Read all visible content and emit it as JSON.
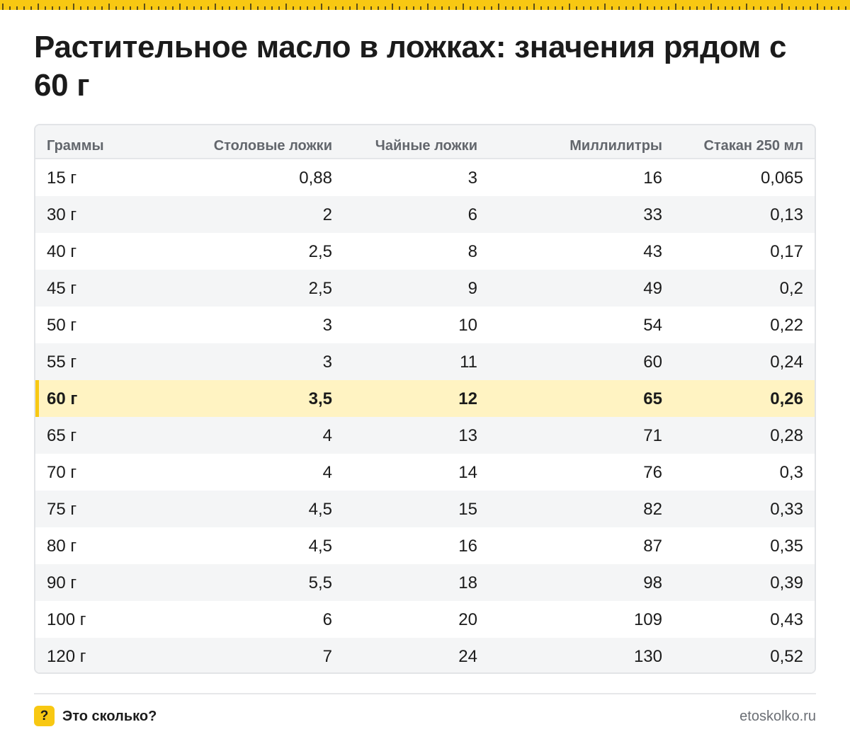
{
  "title": "Растительное масло в ложках: значения рядом с 60 г",
  "colors": {
    "accent": "#f8c812",
    "highlight_row": "#fff3c2",
    "zebra": "#f4f5f6",
    "text": "#1b1b1b",
    "header_text": "#62666c"
  },
  "table": {
    "headers": [
      "Граммы",
      "Столовые ложки",
      "Чайные ложки",
      "Миллилитры",
      "Стакан 250 мл"
    ],
    "highlight_row": "60 г",
    "rows": [
      [
        "15 г",
        "0,88",
        "3",
        "16",
        "0,065"
      ],
      [
        "30 г",
        "2",
        "6",
        "33",
        "0,13"
      ],
      [
        "40 г",
        "2,5",
        "8",
        "43",
        "0,17"
      ],
      [
        "45 г",
        "2,5",
        "9",
        "49",
        "0,2"
      ],
      [
        "50 г",
        "3",
        "10",
        "54",
        "0,22"
      ],
      [
        "55 г",
        "3",
        "11",
        "60",
        "0,24"
      ],
      [
        "60 г",
        "3,5",
        "12",
        "65",
        "0,26"
      ],
      [
        "65 г",
        "4",
        "13",
        "71",
        "0,28"
      ],
      [
        "70 г",
        "4",
        "14",
        "76",
        "0,3"
      ],
      [
        "75 г",
        "4,5",
        "15",
        "82",
        "0,33"
      ],
      [
        "80 г",
        "4,5",
        "16",
        "87",
        "0,35"
      ],
      [
        "90 г",
        "5,5",
        "18",
        "98",
        "0,39"
      ],
      [
        "100 г",
        "6",
        "20",
        "109",
        "0,43"
      ],
      [
        "120 г",
        "7",
        "24",
        "130",
        "0,52"
      ]
    ]
  },
  "footer": {
    "badge_icon": "question-mark-icon",
    "badge_glyph": "?",
    "brand_name": "Это сколько?",
    "site_url": "etoskolko.ru"
  }
}
